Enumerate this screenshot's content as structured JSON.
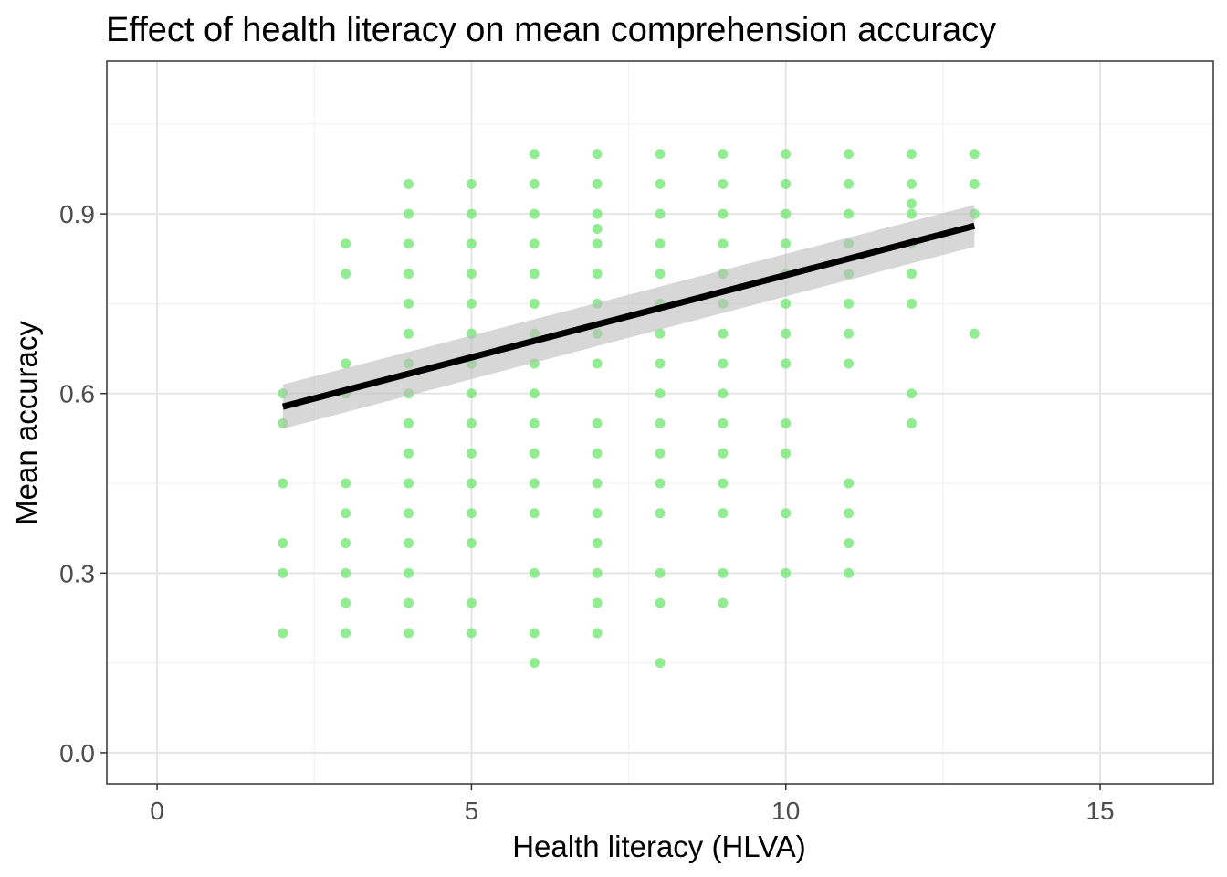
{
  "chart_data": {
    "type": "scatter",
    "title": "Effect of health literacy on mean comprehension accuracy",
    "xlabel": "Health literacy (HLVA)",
    "ylabel": "Mean accuracy",
    "xlim": [
      -0.8,
      16.8
    ],
    "ylim": [
      -0.052,
      1.155
    ],
    "x_ticks": [
      0,
      5,
      10,
      15
    ],
    "x_tick_labels": [
      "0",
      "5",
      "10",
      "15"
    ],
    "y_ticks": [
      0.0,
      0.3,
      0.6,
      0.9
    ],
    "y_tick_labels": [
      "0.0",
      "0.3",
      "0.6",
      "0.9"
    ],
    "grid": true,
    "legend": "none",
    "colors": {
      "points": "#6ee66e",
      "fit_line": "#000000",
      "ribbon": "#bdbdbd",
      "grid_major": "#e5e5e5",
      "grid_minor": "#f2f2f2",
      "panel_border": "#333333"
    },
    "series": [
      {
        "kind": "points",
        "points": [
          [
            2,
            0.6
          ],
          [
            2,
            0.55
          ],
          [
            2,
            0.45
          ],
          [
            2,
            0.35
          ],
          [
            2,
            0.3
          ],
          [
            2,
            0.2
          ],
          [
            3,
            0.85
          ],
          [
            3,
            0.8
          ],
          [
            3,
            0.65
          ],
          [
            3,
            0.6
          ],
          [
            3,
            0.45
          ],
          [
            3,
            0.4
          ],
          [
            3,
            0.35
          ],
          [
            3,
            0.3
          ],
          [
            3,
            0.25
          ],
          [
            3,
            0.2
          ],
          [
            4,
            0.95
          ],
          [
            4,
            0.9
          ],
          [
            4,
            0.85
          ],
          [
            4,
            0.8
          ],
          [
            4,
            0.75
          ],
          [
            4,
            0.7
          ],
          [
            4,
            0.65
          ],
          [
            4,
            0.6
          ],
          [
            4,
            0.55
          ],
          [
            4,
            0.5
          ],
          [
            4,
            0.45
          ],
          [
            4,
            0.4
          ],
          [
            4,
            0.35
          ],
          [
            4,
            0.3
          ],
          [
            4,
            0.25
          ],
          [
            4,
            0.2
          ],
          [
            5,
            0.95
          ],
          [
            5,
            0.9
          ],
          [
            5,
            0.85
          ],
          [
            5,
            0.8
          ],
          [
            5,
            0.75
          ],
          [
            5,
            0.7
          ],
          [
            5,
            0.65
          ],
          [
            5,
            0.6
          ],
          [
            5,
            0.55
          ],
          [
            5,
            0.5
          ],
          [
            5,
            0.45
          ],
          [
            5,
            0.4
          ],
          [
            5,
            0.35
          ],
          [
            5,
            0.25
          ],
          [
            5,
            0.2
          ],
          [
            6,
            1.0
          ],
          [
            6,
            0.95
          ],
          [
            6,
            0.9
          ],
          [
            6,
            0.85
          ],
          [
            6,
            0.8
          ],
          [
            6,
            0.75
          ],
          [
            6,
            0.7
          ],
          [
            6,
            0.65
          ],
          [
            6,
            0.6
          ],
          [
            6,
            0.55
          ],
          [
            6,
            0.5
          ],
          [
            6,
            0.45
          ],
          [
            6,
            0.4
          ],
          [
            6,
            0.3
          ],
          [
            6,
            0.2
          ],
          [
            6,
            0.15
          ],
          [
            7,
            1.0
          ],
          [
            7,
            0.95
          ],
          [
            7,
            0.9
          ],
          [
            7,
            0.875
          ],
          [
            7,
            0.85
          ],
          [
            7,
            0.8
          ],
          [
            7,
            0.75
          ],
          [
            7,
            0.7
          ],
          [
            7,
            0.65
          ],
          [
            7,
            0.55
          ],
          [
            7,
            0.5
          ],
          [
            7,
            0.45
          ],
          [
            7,
            0.4
          ],
          [
            7,
            0.35
          ],
          [
            7,
            0.3
          ],
          [
            7,
            0.25
          ],
          [
            7,
            0.2
          ],
          [
            8,
            1.0
          ],
          [
            8,
            0.95
          ],
          [
            8,
            0.9
          ],
          [
            8,
            0.85
          ],
          [
            8,
            0.8
          ],
          [
            8,
            0.75
          ],
          [
            8,
            0.7
          ],
          [
            8,
            0.65
          ],
          [
            8,
            0.6
          ],
          [
            8,
            0.55
          ],
          [
            8,
            0.5
          ],
          [
            8,
            0.45
          ],
          [
            8,
            0.4
          ],
          [
            8,
            0.3
          ],
          [
            8,
            0.25
          ],
          [
            8,
            0.15
          ],
          [
            9,
            1.0
          ],
          [
            9,
            0.95
          ],
          [
            9,
            0.9
          ],
          [
            9,
            0.85
          ],
          [
            9,
            0.8
          ],
          [
            9,
            0.75
          ],
          [
            9,
            0.7
          ],
          [
            9,
            0.65
          ],
          [
            9,
            0.6
          ],
          [
            9,
            0.55
          ],
          [
            9,
            0.5
          ],
          [
            9,
            0.45
          ],
          [
            9,
            0.4
          ],
          [
            9,
            0.3
          ],
          [
            9,
            0.25
          ],
          [
            10,
            1.0
          ],
          [
            10,
            0.95
          ],
          [
            10,
            0.9
          ],
          [
            10,
            0.85
          ],
          [
            10,
            0.8
          ],
          [
            10,
            0.75
          ],
          [
            10,
            0.7
          ],
          [
            10,
            0.65
          ],
          [
            10,
            0.55
          ],
          [
            10,
            0.5
          ],
          [
            10,
            0.4
          ],
          [
            10,
            0.3
          ],
          [
            11,
            1.0
          ],
          [
            11,
            0.95
          ],
          [
            11,
            0.9
          ],
          [
            11,
            0.85
          ],
          [
            11,
            0.8
          ],
          [
            11,
            0.75
          ],
          [
            11,
            0.7
          ],
          [
            11,
            0.65
          ],
          [
            11,
            0.45
          ],
          [
            11,
            0.4
          ],
          [
            11,
            0.35
          ],
          [
            11,
            0.3
          ],
          [
            12,
            1.0
          ],
          [
            12,
            0.95
          ],
          [
            12,
            0.917
          ],
          [
            12,
            0.9
          ],
          [
            12,
            0.85
          ],
          [
            12,
            0.8
          ],
          [
            12,
            0.75
          ],
          [
            12,
            0.6
          ],
          [
            12,
            0.55
          ],
          [
            13,
            1.0
          ],
          [
            13,
            0.95
          ],
          [
            13,
            0.9
          ],
          [
            13,
            0.7
          ]
        ]
      },
      {
        "kind": "linear_fit",
        "x": [
          2,
          13
        ],
        "y": [
          0.578,
          0.88
        ],
        "ci_lower": [
          0.541,
          0.845
        ],
        "ci_upper": [
          0.615,
          0.915
        ]
      }
    ]
  }
}
